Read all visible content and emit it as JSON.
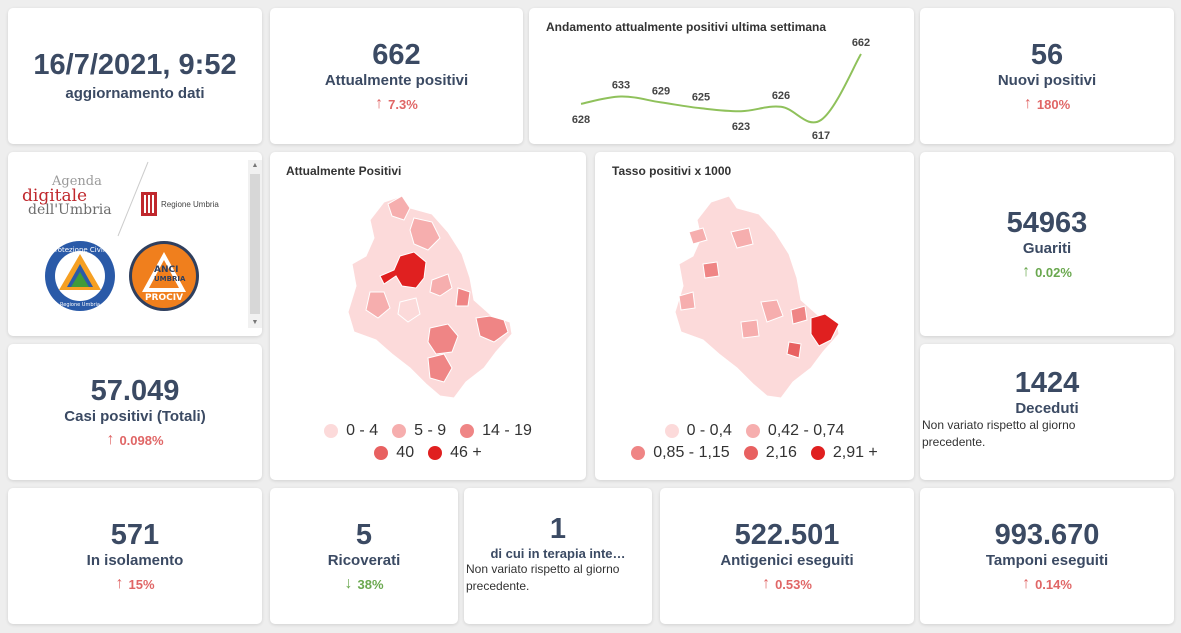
{
  "update": {
    "value": "16/7/2021, 9:52",
    "label": "aggiornamento dati"
  },
  "attualmente_positivi": {
    "value": "662",
    "label": "Attualmente positivi",
    "delta": "7.3%",
    "direction": "up"
  },
  "trend_chart": {
    "title": "Andamento attualmente positivi ultima settimana",
    "values": [
      628,
      633,
      629,
      625,
      623,
      626,
      617,
      662
    ],
    "labels": [
      "628",
      "633",
      "629",
      "625",
      "623",
      "626",
      "617",
      "662"
    ],
    "line_color": "#8fc15b"
  },
  "nuovi_positivi": {
    "value": "56",
    "label": "Nuovi positivi",
    "delta": "180%",
    "direction": "up"
  },
  "logos": {
    "agenda_line1": "Agenda",
    "agenda_line2": "digitale",
    "agenda_line3": "dell'Umbria",
    "regione": "Regione Umbria",
    "protezione_civile": "Protezione Civile",
    "protezione_regione": "Regione Umbria",
    "anci_line1": "ANCI",
    "anci_line2": "UMBRIA",
    "anci_line3": "PROCIV"
  },
  "map_positivi": {
    "title": "Attualmente Positivi",
    "legend": [
      {
        "label": "0 - 4",
        "color": "#fcdada"
      },
      {
        "label": "5 - 9",
        "color": "#f6aeae"
      },
      {
        "label": "14 - 19",
        "color": "#ef8585"
      },
      {
        "label": "40",
        "color": "#e86161"
      },
      {
        "label": "46 +",
        "color": "#e02020"
      }
    ]
  },
  "map_tasso": {
    "title": "Tasso positivi x 1000",
    "legend": [
      {
        "label": "0 - 0,4",
        "color": "#fcdada"
      },
      {
        "label": "0,42 - 0,74",
        "color": "#f6aeae"
      },
      {
        "label": "0,85 - 1,15",
        "color": "#ef8585"
      },
      {
        "label": "2,16",
        "color": "#e86161"
      },
      {
        "label": "2,91 +",
        "color": "#e02020"
      }
    ]
  },
  "guariti": {
    "value": "54963",
    "label": "Guariti",
    "delta": "0.02%",
    "direction": "up-green"
  },
  "casi_totali": {
    "value": "57.049",
    "label": "Casi positivi (Totali)",
    "delta": "0.098%",
    "direction": "up"
  },
  "deceduti": {
    "value": "1424",
    "label": "Deceduti",
    "note": "Non variato rispetto al giorno precedente."
  },
  "isolamento": {
    "value": "571",
    "label": "In isolamento",
    "delta": "15%",
    "direction": "up"
  },
  "ricoverati": {
    "value": "5",
    "label": "Ricoverati",
    "delta": "38%",
    "direction": "down"
  },
  "terapia": {
    "value": "1",
    "label": "di cui in terapia inte…",
    "note": "Non variato rispetto al giorno precedente."
  },
  "antigenici": {
    "value": "522.501",
    "label": "Antigenici eseguiti",
    "delta": "0.53%",
    "direction": "up"
  },
  "tamponi": {
    "value": "993.670",
    "label": "Tamponi eseguiti",
    "delta": "0.14%",
    "direction": "up"
  }
}
